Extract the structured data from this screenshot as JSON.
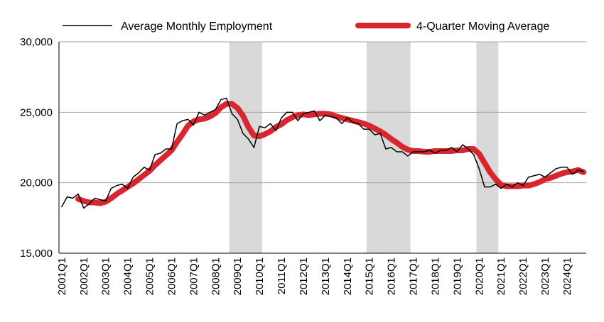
{
  "chart_data": {
    "type": "line",
    "title": "",
    "xlabel": "",
    "ylabel": "",
    "ylim": [
      15000,
      30000
    ],
    "y_ticks": [
      15000,
      20000,
      25000,
      30000
    ],
    "y_tick_labels": [
      "15,000",
      "20,000",
      "25,000",
      "30,000"
    ],
    "grid": "horizontal",
    "legend_position": "top",
    "x_start": "2001Q1",
    "x_tick_labels": [
      "2001Q1",
      "2002Q1",
      "2003Q1",
      "2004Q1",
      "2005Q1",
      "2006Q1",
      "2007Q1",
      "2008Q1",
      "2009Q1",
      "2010Q1",
      "2011Q1",
      "2012Q1",
      "2013Q1",
      "2014Q1",
      "2015Q1",
      "2016Q1",
      "2017Q1",
      "2018Q1",
      "2019Q1",
      "2020Q1",
      "2021Q1",
      "2022Q1",
      "2023Q1",
      "2024Q1"
    ],
    "recessions": [
      [
        "2008Q4",
        "2010Q1"
      ],
      [
        "2015Q1",
        "2016Q4"
      ],
      [
        "2020Q1",
        "2020Q4"
      ]
    ],
    "series": [
      {
        "name": "Average Monthly Employment",
        "color": "#000000",
        "values": [
          18300,
          19000,
          18900,
          19200,
          18200,
          18500,
          18900,
          18800,
          18700,
          19600,
          19800,
          19900,
          19600,
          20400,
          20700,
          21100,
          20900,
          22000,
          22100,
          22400,
          22400,
          24200,
          24400,
          24500,
          24100,
          25000,
          24800,
          25000,
          25200,
          25900,
          26000,
          24900,
          24500,
          23500,
          23100,
          22500,
          24000,
          23900,
          24200,
          23700,
          24600,
          25000,
          25000,
          24400,
          24900,
          25000,
          25100,
          24400,
          24800,
          24700,
          24600,
          24200,
          24600,
          24300,
          24200,
          23800,
          23800,
          23400,
          23500,
          22400,
          22500,
          22200,
          22200,
          21900,
          22200,
          22200,
          22200,
          22300,
          22100,
          22300,
          22300,
          22500,
          22200,
          22700,
          22400,
          22000,
          21000,
          19700,
          19700,
          19900,
          19600,
          19900,
          19700,
          20000,
          19800,
          20400,
          20500,
          20600,
          20400,
          20700,
          21000,
          21100,
          21100,
          20600,
          20900,
          20800
        ]
      },
      {
        "name": "4-Quarter Moving Average",
        "color": "#d9262e",
        "values": [
          null,
          null,
          null,
          18850,
          18700,
          18600,
          18600,
          18550,
          18650,
          18900,
          19200,
          19450,
          19700,
          19950,
          20250,
          20550,
          20850,
          21250,
          21600,
          21950,
          22300,
          22900,
          23450,
          24050,
          24350,
          24500,
          24550,
          24700,
          24950,
          25350,
          25600,
          25600,
          25300,
          24750,
          23950,
          23350,
          23300,
          23450,
          23650,
          23950,
          24150,
          24450,
          24650,
          24800,
          24850,
          24800,
          24850,
          24900,
          24900,
          24850,
          24700,
          24600,
          24500,
          24400,
          24300,
          24200,
          24050,
          23850,
          23650,
          23400,
          23100,
          22850,
          22550,
          22350,
          22250,
          22250,
          22200,
          22200,
          22250,
          22250,
          22250,
          22250,
          22300,
          22300,
          22400,
          22400,
          22050,
          21400,
          20750,
          20250,
          19850,
          19750,
          19750,
          19750,
          19800,
          19800,
          19900,
          20050,
          20250,
          20350,
          20500,
          20650,
          20750,
          20800,
          20900,
          20750
        ]
      }
    ]
  }
}
